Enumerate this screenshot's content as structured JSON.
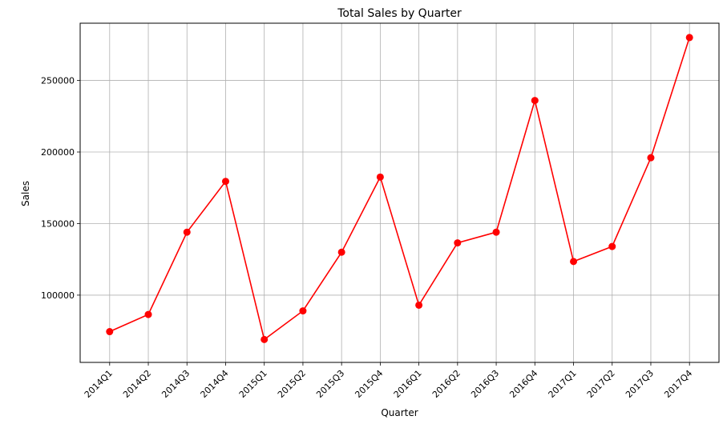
{
  "chart_data": {
    "type": "line",
    "title": "Total Sales by Quarter",
    "xlabel": "Quarter",
    "ylabel": "Sales",
    "categories": [
      "2014Q1",
      "2014Q2",
      "2014Q3",
      "2014Q4",
      "2015Q1",
      "2015Q2",
      "2015Q3",
      "2015Q4",
      "2016Q1",
      "2016Q2",
      "2016Q3",
      "2016Q4",
      "2017Q1",
      "2017Q2",
      "2017Q3",
      "2017Q4"
    ],
    "series": [
      {
        "values": [
          74500,
          86500,
          144000,
          179500,
          69000,
          89000,
          130000,
          182500,
          93000,
          136500,
          144000,
          236000,
          123500,
          134000,
          196000,
          280000
        ],
        "color": "#ff0000"
      }
    ],
    "ylim": [
      53000,
      290000
    ],
    "yticks": [
      100000,
      150000,
      200000,
      250000
    ],
    "ytick_labels": [
      "100000",
      "150000",
      "200000",
      "250000"
    ],
    "grid": true,
    "marker": "circle"
  }
}
